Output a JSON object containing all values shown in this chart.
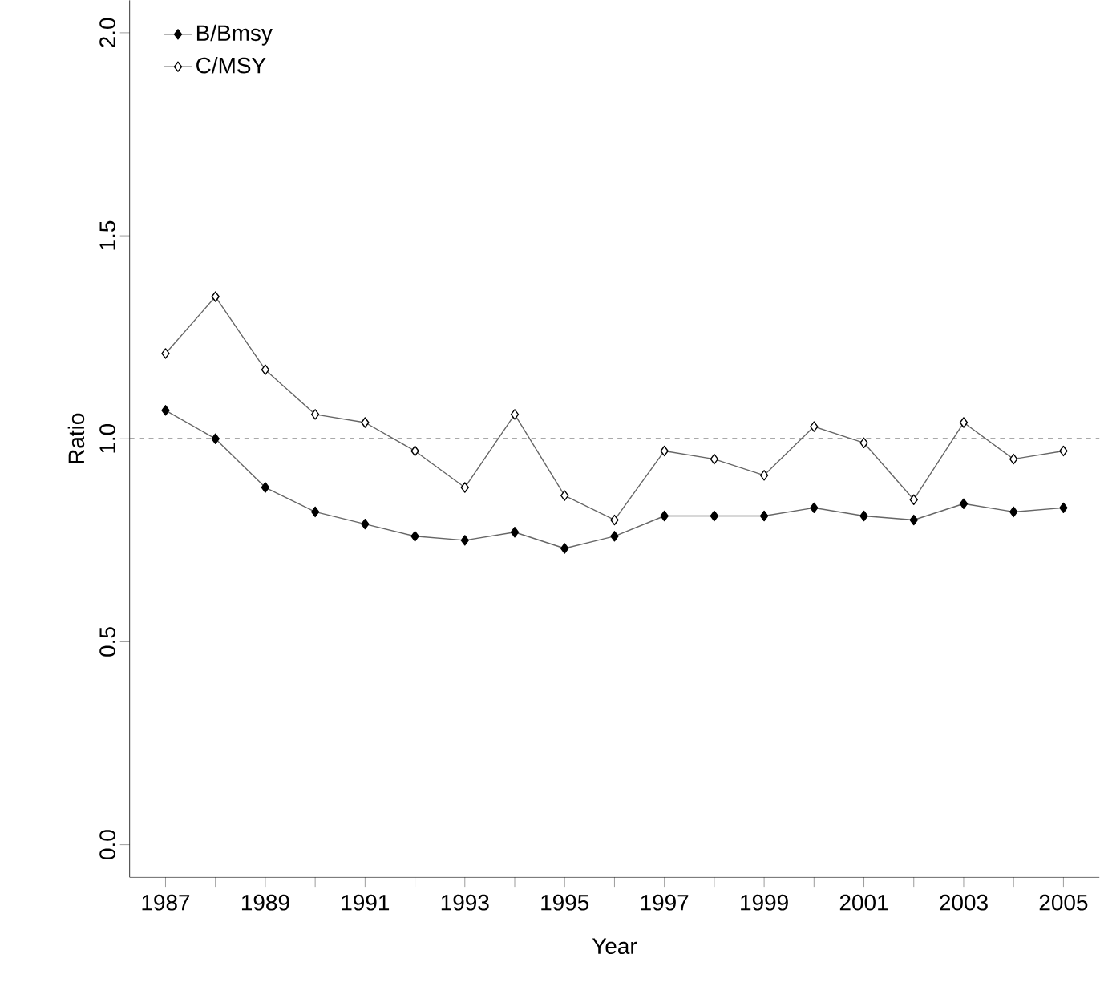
{
  "chart_data": {
    "type": "line",
    "xlabel": "Year",
    "ylabel": "Ratio",
    "x": [
      1987,
      1988,
      1989,
      1990,
      1991,
      1992,
      1993,
      1994,
      1995,
      1996,
      1997,
      1998,
      1999,
      2000,
      2001,
      2002,
      2003,
      2004,
      2005
    ],
    "series": [
      {
        "name": "B/Bmsy",
        "color": "#000000",
        "values": [
          1.07,
          1.0,
          0.88,
          0.82,
          0.79,
          0.76,
          0.75,
          0.77,
          0.73,
          0.76,
          0.81,
          0.81,
          0.81,
          0.83,
          0.81,
          0.8,
          0.84,
          0.82,
          0.83
        ]
      },
      {
        "name": "C/MSY",
        "color": "#000000",
        "values": [
          1.21,
          1.35,
          1.17,
          1.06,
          1.04,
          0.97,
          0.88,
          1.06,
          0.86,
          0.8,
          0.97,
          0.95,
          0.91,
          1.03,
          0.99,
          0.85,
          1.04,
          0.95,
          0.97
        ]
      }
    ],
    "xlim": [
      1986.28,
      2005.72
    ],
    "ylim": [
      -0.08,
      2.08
    ],
    "xticks": [
      1987,
      {
        "value": 1988,
        "label": null
      },
      1989,
      {
        "value": 1990,
        "label": null
      },
      1991,
      {
        "value": 1992,
        "label": null
      },
      1993,
      {
        "value": 1994,
        "label": null
      },
      1995,
      {
        "value": 1996,
        "label": null
      },
      1997,
      {
        "value": 1998,
        "label": null
      },
      1999,
      {
        "value": 2000,
        "label": null
      },
      2001,
      {
        "value": 2002,
        "label": null
      },
      2003,
      {
        "value": 2004,
        "label": null
      },
      2005
    ],
    "yticks": [
      {
        "value": 0,
        "label": "0.0"
      },
      {
        "value": 0.5,
        "label": "0.5"
      },
      {
        "value": 1,
        "label": "1.0"
      },
      {
        "value": 1.5,
        "label": "1.5"
      },
      {
        "value": 2,
        "label": "2.0"
      }
    ],
    "ref_lines": [
      {
        "axis": "y",
        "value": 1,
        "color": "#555555",
        "line_style": "dashed"
      }
    ],
    "legend": "top left",
    "marker": "diamond",
    "line_style": "solid",
    "grid": false
  }
}
